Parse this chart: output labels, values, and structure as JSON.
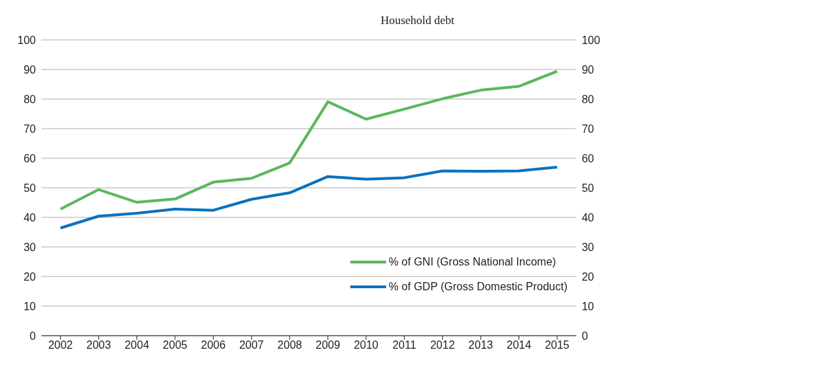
{
  "chart_data": {
    "type": "line",
    "title": "Household debt",
    "categories": [
      "2002",
      "2003",
      "2004",
      "2005",
      "2006",
      "2007",
      "2008",
      "2009",
      "2010",
      "2011",
      "2012",
      "2013",
      "2014",
      "2015"
    ],
    "series": [
      {
        "name": "% of GNI (Gross National Income)",
        "color": "#5cb85c",
        "values": [
          42.8,
          49.4,
          45.1,
          46.2,
          51.9,
          53.2,
          58.4,
          79.1,
          73.2,
          76.6,
          80.1,
          83.0,
          84.3,
          89.4
        ]
      },
      {
        "name": "% of GDP (Gross Domestic Product)",
        "color": "#0a72bf",
        "values": [
          36.4,
          40.4,
          41.4,
          42.8,
          42.4,
          46.1,
          48.3,
          53.8,
          52.9,
          53.4,
          55.7,
          55.6,
          55.7,
          57.0
        ]
      }
    ],
    "ylim": [
      0,
      100
    ],
    "yticks": [
      0,
      10,
      20,
      30,
      40,
      50,
      60,
      70,
      80,
      90,
      100
    ],
    "y2lim": [
      0,
      100
    ],
    "y2ticks": [
      0,
      10,
      20,
      30,
      40,
      50,
      60,
      70,
      80,
      90,
      100
    ],
    "grid": "y",
    "legend": "bottom right",
    "marker": "none",
    "line_style": "solid"
  }
}
